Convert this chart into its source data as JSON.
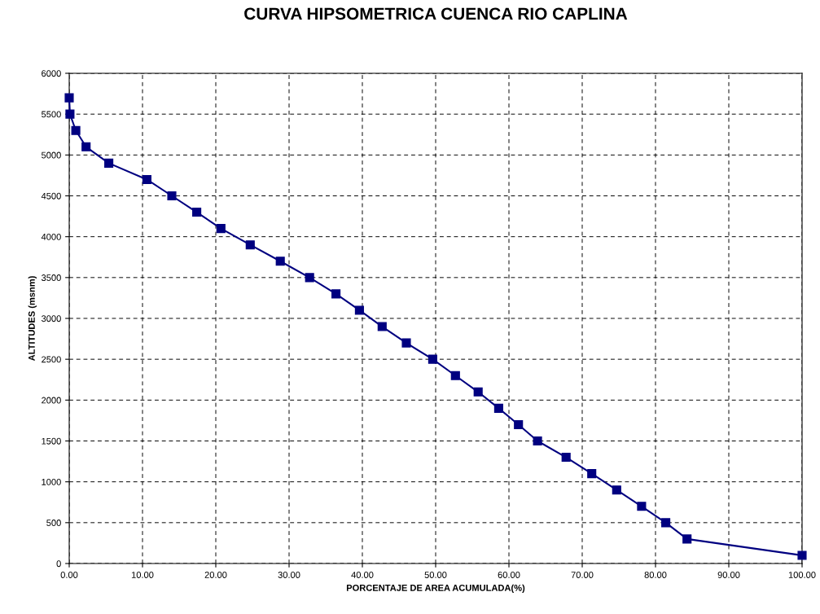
{
  "chart_data": {
    "type": "line",
    "title": "CURVA HIPSOMETRICA CUENCA RIO CAPLINA",
    "xlabel": "PORCENTAJE DE AREA ACUMULADA(%)",
    "ylabel": "ALTITUDES (msnm)",
    "series": [
      {
        "color": "#000080",
        "x": [
          0,
          0.1,
          0.9,
          2.3,
          5.4,
          10.6,
          14.0,
          17.4,
          20.7,
          24.7,
          28.8,
          32.8,
          36.4,
          39.6,
          42.7,
          46.0,
          49.6,
          52.7,
          55.8,
          58.6,
          61.3,
          63.9,
          67.8,
          71.3,
          74.7,
          78.1,
          81.4,
          84.3,
          100
        ],
        "values": [
          5700,
          5500,
          5300,
          5100,
          4900,
          4700,
          4500,
          4300,
          4100,
          3900,
          3700,
          3500,
          3300,
          3100,
          2900,
          2700,
          2500,
          2300,
          2100,
          1900,
          1700,
          1500,
          1300,
          1100,
          900,
          700,
          500,
          300,
          100
        ]
      }
    ],
    "xlim": [
      0,
      100
    ],
    "ylim": [
      0,
      6000
    ],
    "xticks": [
      {
        "value": 0,
        "label": "0.00"
      },
      {
        "value": 10,
        "label": "10.00"
      },
      {
        "value": 20,
        "label": "20.00"
      },
      {
        "value": 30,
        "label": "30.00"
      },
      {
        "value": 40,
        "label": "40.00"
      },
      {
        "value": 50,
        "label": "50.00"
      },
      {
        "value": 60,
        "label": "60.00"
      },
      {
        "value": 70,
        "label": "70.00"
      },
      {
        "value": 80,
        "label": "80.00"
      },
      {
        "value": 90,
        "label": "90.00"
      },
      {
        "value": 100,
        "label": "100.00"
      }
    ],
    "yticks": [
      0,
      500,
      1000,
      1500,
      2000,
      2500,
      3000,
      3500,
      4000,
      4500,
      5000,
      5500,
      6000
    ],
    "grid": true,
    "marker": "square",
    "line_style": "solid"
  }
}
